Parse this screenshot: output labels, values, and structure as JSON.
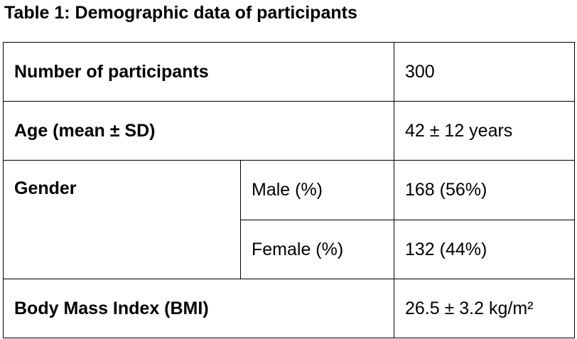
{
  "caption": "Table 1: Demographic data of participants",
  "rows": [
    {
      "label": "Number of participants",
      "value": "300"
    },
    {
      "label": "Age (mean ± SD)",
      "value": "42 ± 12 years"
    },
    {
      "label": "Gender",
      "sub": [
        {
          "label": "Male (%)",
          "value": "168 (56%)"
        },
        {
          "label": "Female (%)",
          "value": "132 (44%)"
        }
      ]
    },
    {
      "label": "Body Mass Index (BMI)",
      "value": "26.5 ± 3.2 kg/m²"
    }
  ]
}
